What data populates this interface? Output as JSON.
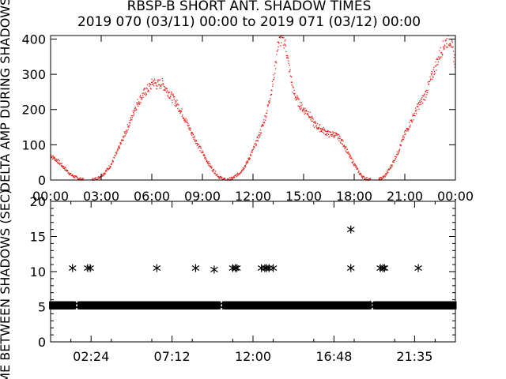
{
  "chart_data": [
    {
      "type": "scatter",
      "title": "RBSP-B SHORT ANT. SHADOW TIMES",
      "subtitle": "2019 070 (03/11) 00:00 to 2019 071 (03/12) 00:00",
      "ylabel": "DELTA AMP DURING SHADOWS",
      "xlim": [
        0,
        24
      ],
      "ylim": [
        0,
        410
      ],
      "xticks": [
        "00:00",
        "03:00",
        "06:00",
        "09:00",
        "12:00",
        "15:00",
        "18:00",
        "21:00",
        "00:00"
      ],
      "yticks": [
        "0",
        "100",
        "200",
        "300",
        "400"
      ],
      "marker_color": "#e8231b",
      "series": [
        {
          "x": [
            0.0,
            0.4,
            0.8,
            1.2,
            1.6,
            2.0,
            2.4,
            2.8,
            3.2,
            3.6,
            4.0,
            4.4,
            4.8,
            5.0,
            5.3,
            5.6,
            5.9,
            6.1,
            6.3,
            6.6,
            6.9,
            7.2,
            7.5,
            7.8,
            8.1,
            8.4,
            8.8,
            9.2,
            9.6,
            10.0,
            10.4,
            10.8,
            11.2,
            11.6,
            12.0,
            12.4,
            12.8,
            13.2,
            13.5,
            13.7,
            13.9,
            14.1,
            14.4,
            14.7,
            15.0,
            15.3,
            15.6,
            15.9,
            16.2,
            16.5,
            16.8,
            17.1,
            17.4,
            17.7,
            18.0,
            18.3,
            18.6,
            19.0,
            19.4,
            19.8,
            20.2,
            20.6,
            21.0,
            21.4,
            21.8,
            22.2,
            22.5,
            22.8,
            23.1,
            23.4,
            23.7,
            24.0
          ],
          "y": [
            70,
            55,
            35,
            15,
            5,
            0,
            0,
            5,
            20,
            45,
            85,
            130,
            175,
            205,
            230,
            250,
            265,
            280,
            270,
            275,
            255,
            235,
            215,
            190,
            160,
            130,
            95,
            60,
            30,
            8,
            0,
            5,
            20,
            45,
            85,
            130,
            190,
            280,
            390,
            400,
            390,
            330,
            250,
            220,
            200,
            190,
            160,
            150,
            140,
            130,
            130,
            120,
            100,
            70,
            45,
            20,
            5,
            0,
            0,
            10,
            40,
            80,
            130,
            170,
            210,
            240,
            280,
            320,
            360,
            390,
            400,
            330
          ]
        }
      ]
    },
    {
      "type": "scatter",
      "ylabel": "TIME BETWEEN SHADOWS (SEC)",
      "xlim": [
        0,
        24
      ],
      "ylim": [
        0,
        20
      ],
      "xticks": [
        "02:24",
        "07:12",
        "12:00",
        "16:48",
        "21:35"
      ],
      "yticks": [
        "0",
        "5",
        "10",
        "15",
        "20"
      ],
      "marker": "asterisk",
      "marker_color": "#000000",
      "band": {
        "y": 5.2,
        "from": 0.05,
        "to": 23.95,
        "gaps": [
          [
            1.4,
            1.7
          ],
          [
            10.0,
            10.3
          ],
          [
            18.9,
            19.2
          ]
        ]
      },
      "series": [
        {
          "x": [
            1.3,
            2.2,
            2.35,
            6.3,
            8.6,
            9.7,
            10.8,
            10.95,
            11.05,
            12.5,
            12.7,
            12.8,
            12.95,
            13.2,
            17.8,
            17.8,
            18.95,
            19.55,
            19.7,
            19.8,
            21.8
          ],
          "y": [
            10.5,
            10.5,
            10.5,
            10.5,
            10.5,
            10.3,
            10.5,
            10.5,
            10.5,
            10.5,
            10.5,
            10.5,
            10.5,
            10.5,
            16.0,
            10.5,
            5.3,
            10.5,
            10.5,
            10.5,
            10.5
          ]
        }
      ]
    }
  ]
}
